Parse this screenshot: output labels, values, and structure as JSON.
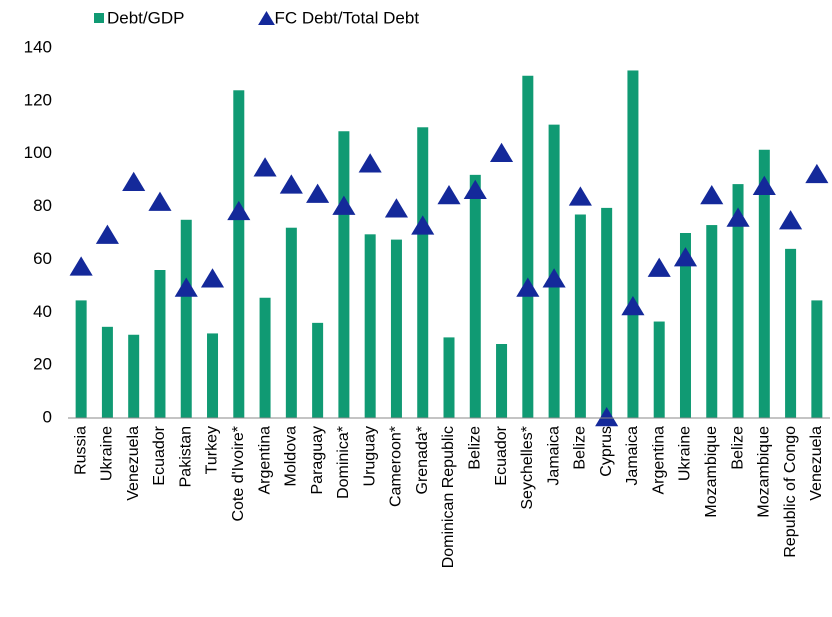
{
  "chart_data": {
    "type": "bar",
    "categories": [
      "Russia",
      "Ukraine",
      "Venezuela",
      "Ecuador",
      "Pakistan",
      "Turkey",
      "Cote d'Ivoire*",
      "Argentina",
      "Moldova",
      "Paraguay",
      "Dominica*",
      "Uruguay",
      "Cameroon*",
      "Grenada*",
      "Dominican Republic",
      "Belize",
      "Ecuador",
      "Seychelles*",
      "Jamaica",
      "Belize",
      "Cyprus",
      "Jamaica",
      "Argentina",
      "Ukraine",
      "Mozambique",
      "Belize",
      "Mozambique",
      "Republic of Congo",
      "Venezuela"
    ],
    "series": [
      {
        "name": "Debt/GDP",
        "type": "bar",
        "color": "#109a73",
        "values": [
          44.5,
          34.5,
          31.5,
          56,
          75,
          32,
          124,
          45.5,
          72,
          36,
          108.5,
          69.5,
          67.5,
          110,
          30.5,
          92,
          28,
          129.5,
          111,
          77,
          79.5,
          131.5,
          36.5,
          70,
          73,
          88.5,
          101.5,
          64,
          44.5
        ]
      },
      {
        "name": "FC Debt/Total Debt",
        "type": "scatter",
        "marker": "triangle",
        "color": "#14299a",
        "values": [
          57,
          69,
          89,
          81.5,
          49,
          52.5,
          78,
          94.5,
          88,
          84.5,
          80,
          96,
          79,
          72.5,
          84,
          86,
          100,
          49,
          52.5,
          83.5,
          0,
          42,
          56.5,
          60.5,
          84,
          75.5,
          87.5,
          74.5,
          92
        ]
      }
    ],
    "ylim": [
      0,
      140
    ],
    "yticks": [
      0,
      20,
      40,
      60,
      80,
      100,
      120,
      140
    ],
    "grid": false,
    "legend": "top"
  }
}
